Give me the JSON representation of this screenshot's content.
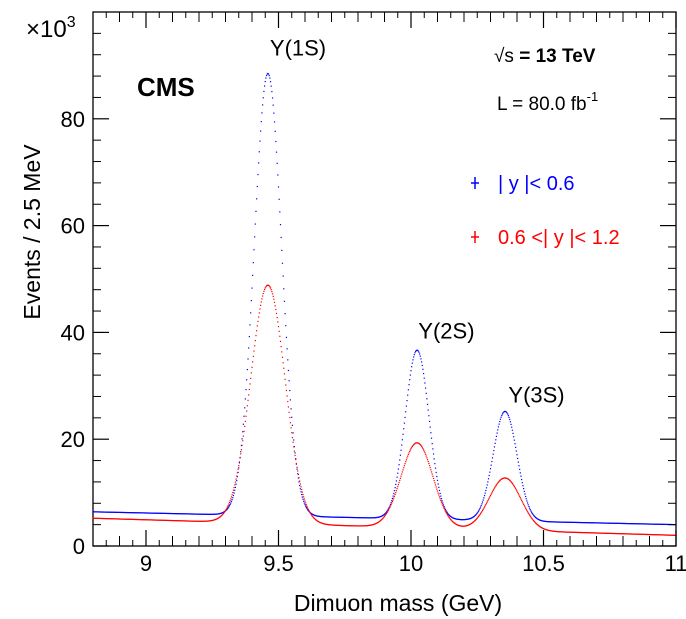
{
  "chart_data": {
    "type": "scatter",
    "title": "",
    "xlabel": "Dimuon mass (GeV)",
    "ylabel": "Events / 2.5 MeV",
    "y_multiplier_label": "×10",
    "y_multiplier_exp": "3",
    "xlim": [
      8.8,
      11.0
    ],
    "ylim": [
      0,
      100
    ],
    "x_ticks": [
      9,
      9.5,
      10,
      10.5,
      11
    ],
    "x_tick_labels": [
      "9",
      "9.5",
      "10",
      "10.5",
      "11"
    ],
    "y_ticks": [
      0,
      20,
      40,
      60,
      80
    ],
    "y_tick_labels": [
      "0",
      "20",
      "40",
      "60",
      "80"
    ],
    "grid": false,
    "legend_position": "right",
    "experiment_label": "CMS",
    "energy_label": {
      "sqrt": "√s",
      "rest": " = 13 TeV"
    },
    "lumi_label": {
      "base": "L = 80.0 fb",
      "exp": "-1"
    },
    "peak_labels": [
      {
        "text": "Υ(1S)",
        "x": 9.46,
        "y": 90
      },
      {
        "text": "Υ(2S)",
        "x": 10.02,
        "y": 37
      },
      {
        "text": "Υ(3S)",
        "x": 10.36,
        "y": 25
      }
    ],
    "series": [
      {
        "name": "| y |< 0.6",
        "color": "#0000ff",
        "background": {
          "a": 6.4,
          "b": -2.4
        },
        "peaks": [
          {
            "center": 9.46,
            "amp": 82.8,
            "sigma": 0.052
          },
          {
            "center": 10.023,
            "amp": 31.6,
            "sigma": 0.045
          },
          {
            "center": 10.355,
            "amp": 20.5,
            "sigma": 0.045
          }
        ]
      },
      {
        "name": "0.6 <| y |< 1.2",
        "color": "#ff0000",
        "background": {
          "a": 5.2,
          "b": -3.2
        },
        "peaks": [
          {
            "center": 9.46,
            "amp": 44.6,
            "sigma": 0.065
          },
          {
            "center": 10.023,
            "amp": 15.9,
            "sigma": 0.06
          },
          {
            "center": 10.355,
            "amp": 9.8,
            "sigma": 0.06
          }
        ]
      }
    ]
  }
}
